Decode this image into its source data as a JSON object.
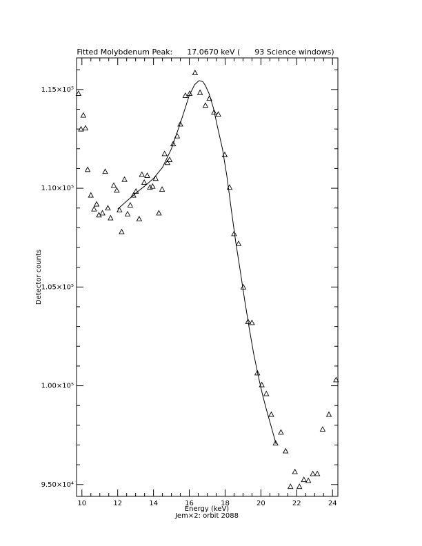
{
  "chart_data": {
    "type": "scatter",
    "title": "Fitted Molybdenum Peak:      17.0670 keV (      93 Science windows)",
    "xlabel": "Energy (keV)",
    "ylabel": "Detector counts",
    "footer": "Jem×2: orbit 2088",
    "xlim": [
      9.7,
      24.3
    ],
    "ylim": [
      94400,
      116600
    ],
    "x_ticks": [
      {
        "value": 10,
        "label": "10"
      },
      {
        "value": 12,
        "label": "12"
      },
      {
        "value": 14,
        "label": "14"
      },
      {
        "value": 16,
        "label": "16"
      },
      {
        "value": 18,
        "label": "18"
      },
      {
        "value": 20,
        "label": "20"
      },
      {
        "value": 22,
        "label": "22"
      },
      {
        "value": 24,
        "label": "24"
      }
    ],
    "y_ticks": [
      {
        "value": 95000,
        "label": "9.50×10⁴"
      },
      {
        "value": 100000,
        "label": "1.00×10⁵"
      },
      {
        "value": 105000,
        "label": "1.05×10⁵"
      },
      {
        "value": 110000,
        "label": "1.10×10⁵"
      },
      {
        "value": 115000,
        "label": "1.15×10⁵"
      }
    ],
    "grid": false,
    "legend": "none",
    "series": [
      {
        "marker": "triangle",
        "points": [
          [
            9.81,
            114800
          ],
          [
            9.95,
            113000
          ],
          [
            10.08,
            113700
          ],
          [
            10.2,
            113050
          ],
          [
            10.32,
            110950
          ],
          [
            10.5,
            109650
          ],
          [
            10.68,
            108950
          ],
          [
            10.82,
            109200
          ],
          [
            10.95,
            108650
          ],
          [
            11.15,
            108750
          ],
          [
            11.3,
            110850
          ],
          [
            11.45,
            109000
          ],
          [
            11.6,
            108500
          ],
          [
            11.78,
            110150
          ],
          [
            11.95,
            109900
          ],
          [
            12.1,
            108900
          ],
          [
            12.22,
            107800
          ],
          [
            12.38,
            110450
          ],
          [
            12.55,
            108700
          ],
          [
            12.7,
            109150
          ],
          [
            12.88,
            109650
          ],
          [
            13.02,
            109850
          ],
          [
            13.2,
            108450
          ],
          [
            13.35,
            110700
          ],
          [
            13.48,
            110300
          ],
          [
            13.65,
            110650
          ],
          [
            13.8,
            110050
          ],
          [
            13.95,
            110100
          ],
          [
            14.12,
            110500
          ],
          [
            14.3,
            108750
          ],
          [
            14.48,
            109950
          ],
          [
            14.62,
            111750
          ],
          [
            14.78,
            111300
          ],
          [
            14.9,
            111450
          ],
          [
            15.1,
            112250
          ],
          [
            15.32,
            112650
          ],
          [
            15.5,
            113250
          ],
          [
            15.78,
            114700
          ],
          [
            16.02,
            114800
          ],
          [
            16.32,
            115850
          ],
          [
            16.6,
            114850
          ],
          [
            16.9,
            114200
          ],
          [
            17.12,
            114550
          ],
          [
            17.38,
            113850
          ],
          [
            17.62,
            113750
          ],
          [
            17.98,
            111700
          ],
          [
            18.25,
            110050
          ],
          [
            18.5,
            107700
          ],
          [
            18.75,
            107200
          ],
          [
            19.02,
            105000
          ],
          [
            19.28,
            103250
          ],
          [
            19.5,
            103200
          ],
          [
            19.8,
            100650
          ],
          [
            20.05,
            100050
          ],
          [
            20.3,
            99600
          ],
          [
            20.58,
            98550
          ],
          [
            20.82,
            97100
          ],
          [
            21.12,
            97650
          ],
          [
            21.38,
            96700
          ],
          [
            21.65,
            94900
          ],
          [
            21.9,
            95650
          ],
          [
            22.15,
            94900
          ],
          [
            22.4,
            95250
          ],
          [
            22.65,
            95200
          ],
          [
            22.9,
            95550
          ],
          [
            23.15,
            95550
          ],
          [
            23.45,
            97800
          ],
          [
            23.8,
            98550
          ],
          [
            24.2,
            100300
          ]
        ]
      },
      {
        "marker": "none",
        "line": true,
        "points": [
          [
            12.0,
            108950
          ],
          [
            12.5,
            109350
          ],
          [
            13.0,
            109750
          ],
          [
            13.5,
            110100
          ],
          [
            14.0,
            110500
          ],
          [
            14.5,
            111050
          ],
          [
            15.0,
            112000
          ],
          [
            15.5,
            113300
          ],
          [
            16.0,
            114700
          ],
          [
            16.3,
            115250
          ],
          [
            16.55,
            115450
          ],
          [
            16.75,
            115400
          ],
          [
            16.9,
            115200
          ],
          [
            17.1,
            114800
          ],
          [
            17.35,
            114050
          ],
          [
            17.6,
            113000
          ],
          [
            17.85,
            112000
          ],
          [
            18.1,
            110600
          ],
          [
            18.35,
            108900
          ],
          [
            18.6,
            107250
          ],
          [
            18.85,
            105800
          ],
          [
            19.1,
            104300
          ],
          [
            19.35,
            102900
          ],
          [
            19.6,
            101600
          ],
          [
            19.85,
            100500
          ],
          [
            20.1,
            99500
          ],
          [
            20.35,
            98650
          ],
          [
            20.6,
            97850
          ],
          [
            20.85,
            97050
          ]
        ]
      }
    ]
  }
}
